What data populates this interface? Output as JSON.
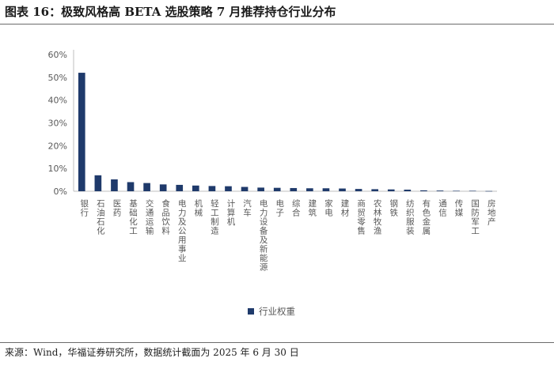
{
  "header": {
    "title": "图表 16：极致风格高 BETA 选股策略 7 月推荐持仓行业分布"
  },
  "footer": {
    "source": "来源：Wind，华福证券研究所，数据统计截面为 2025 年 6 月 30 日"
  },
  "colors": {
    "bar": "#1f3a6b",
    "axis": "#bfbfbf",
    "text": "#595959"
  },
  "chart_data": {
    "type": "bar",
    "categories": [
      "银行",
      "石油石化",
      "医药",
      "基础化工",
      "交通运输",
      "食品饮料",
      "电力及公用事业",
      "机械",
      "轻工制造",
      "计算机",
      "汽车",
      "电力设备及新能源",
      "电子",
      "综合",
      "建筑",
      "家电",
      "建材",
      "商贸零售",
      "农林牧渔",
      "钢铁",
      "纺织服装",
      "有色金属",
      "通信",
      "传媒",
      "国防军工",
      "房地产"
    ],
    "series": [
      {
        "name": "行业权重",
        "values": [
          52.0,
          7.0,
          5.2,
          4.0,
          3.6,
          3.0,
          2.8,
          2.5,
          2.3,
          2.2,
          1.9,
          1.6,
          1.5,
          1.4,
          1.3,
          1.3,
          1.2,
          1.0,
          0.9,
          0.8,
          0.7,
          0.4,
          0.3,
          0.2,
          0.2,
          0.1
        ]
      }
    ],
    "ylim": [
      0,
      60
    ],
    "yticks": [
      "0%",
      "10%",
      "20%",
      "30%",
      "40%",
      "50%",
      "60%"
    ],
    "ytick_values": [
      0,
      10,
      20,
      30,
      40,
      50,
      60
    ],
    "grid": false,
    "legend_position": "bottom-center"
  }
}
